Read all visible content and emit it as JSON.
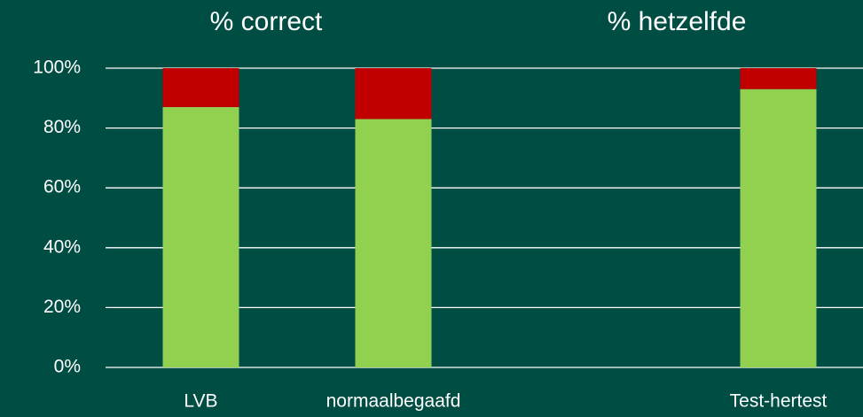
{
  "chart_data": {
    "type": "bar",
    "stacked": true,
    "annotations": [
      "% correct",
      "% hetzelfde"
    ],
    "categories": [
      "LVB",
      "normaalbegaafd",
      null,
      "Test-hertest"
    ],
    "series": [
      {
        "color": "#92d050",
        "values": [
          87,
          83,
          null,
          93
        ]
      },
      {
        "color": "#c00000",
        "values": [
          13,
          17,
          null,
          7
        ]
      }
    ],
    "ylim": [
      0,
      100
    ],
    "yticks": [
      {
        "value": 0,
        "label": "0%"
      },
      {
        "value": 20,
        "label": "20%"
      },
      {
        "value": 40,
        "label": "40%"
      },
      {
        "value": 60,
        "label": "60%"
      },
      {
        "value": 80,
        "label": "80%"
      },
      {
        "value": 100,
        "label": "100%"
      }
    ],
    "grid": true
  }
}
